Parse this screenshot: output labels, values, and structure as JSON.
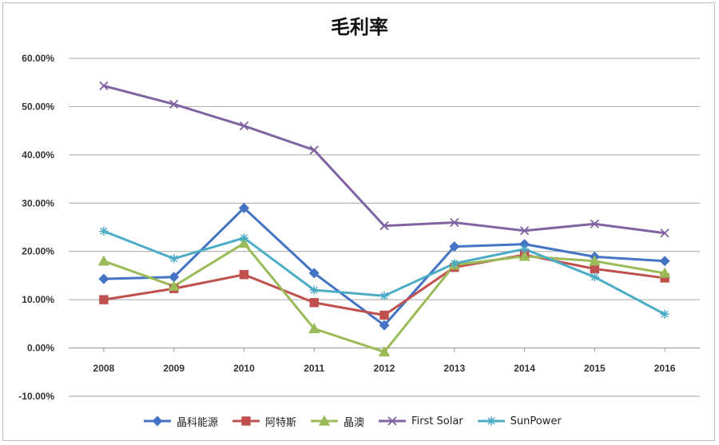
{
  "chart_data": {
    "type": "line",
    "title": "毛利率",
    "xlabel": "",
    "ylabel": "",
    "categories": [
      "2008",
      "2009",
      "2010",
      "2011",
      "2012",
      "2013",
      "2014",
      "2015",
      "2016"
    ],
    "ylim": [
      -0.1,
      0.6
    ],
    "yticks": [
      "60.00%",
      "50.00%",
      "40.00%",
      "30.00%",
      "20.00%",
      "10.00%",
      "0.00%",
      "-10.00%"
    ],
    "grid": true,
    "legend_position": "bottom",
    "series": [
      {
        "name": "晶科能源",
        "color": "#4472C4",
        "marker": "diamond",
        "values": [
          0.143,
          0.147,
          0.29,
          0.155,
          0.047,
          0.21,
          0.215,
          0.189,
          0.18
        ]
      },
      {
        "name": "阿特斯",
        "color": "#C0504D",
        "marker": "square",
        "values": [
          0.1,
          0.123,
          0.152,
          0.094,
          0.068,
          0.167,
          0.193,
          0.164,
          0.145
        ]
      },
      {
        "name": "晶澳",
        "color": "#9BBB59",
        "marker": "triangle",
        "values": [
          0.18,
          0.128,
          0.217,
          0.04,
          -0.008,
          0.172,
          0.19,
          0.18,
          0.155
        ]
      },
      {
        "name": "First Solar",
        "color": "#8064A2",
        "marker": "x",
        "values": [
          0.543,
          0.505,
          0.46,
          0.41,
          0.253,
          0.26,
          0.243,
          0.257,
          0.238
        ]
      },
      {
        "name": "SunPower",
        "color": "#4BACC6",
        "marker": "star",
        "values": [
          0.242,
          0.185,
          0.228,
          0.12,
          0.108,
          0.175,
          0.205,
          0.147,
          0.07
        ]
      }
    ]
  }
}
